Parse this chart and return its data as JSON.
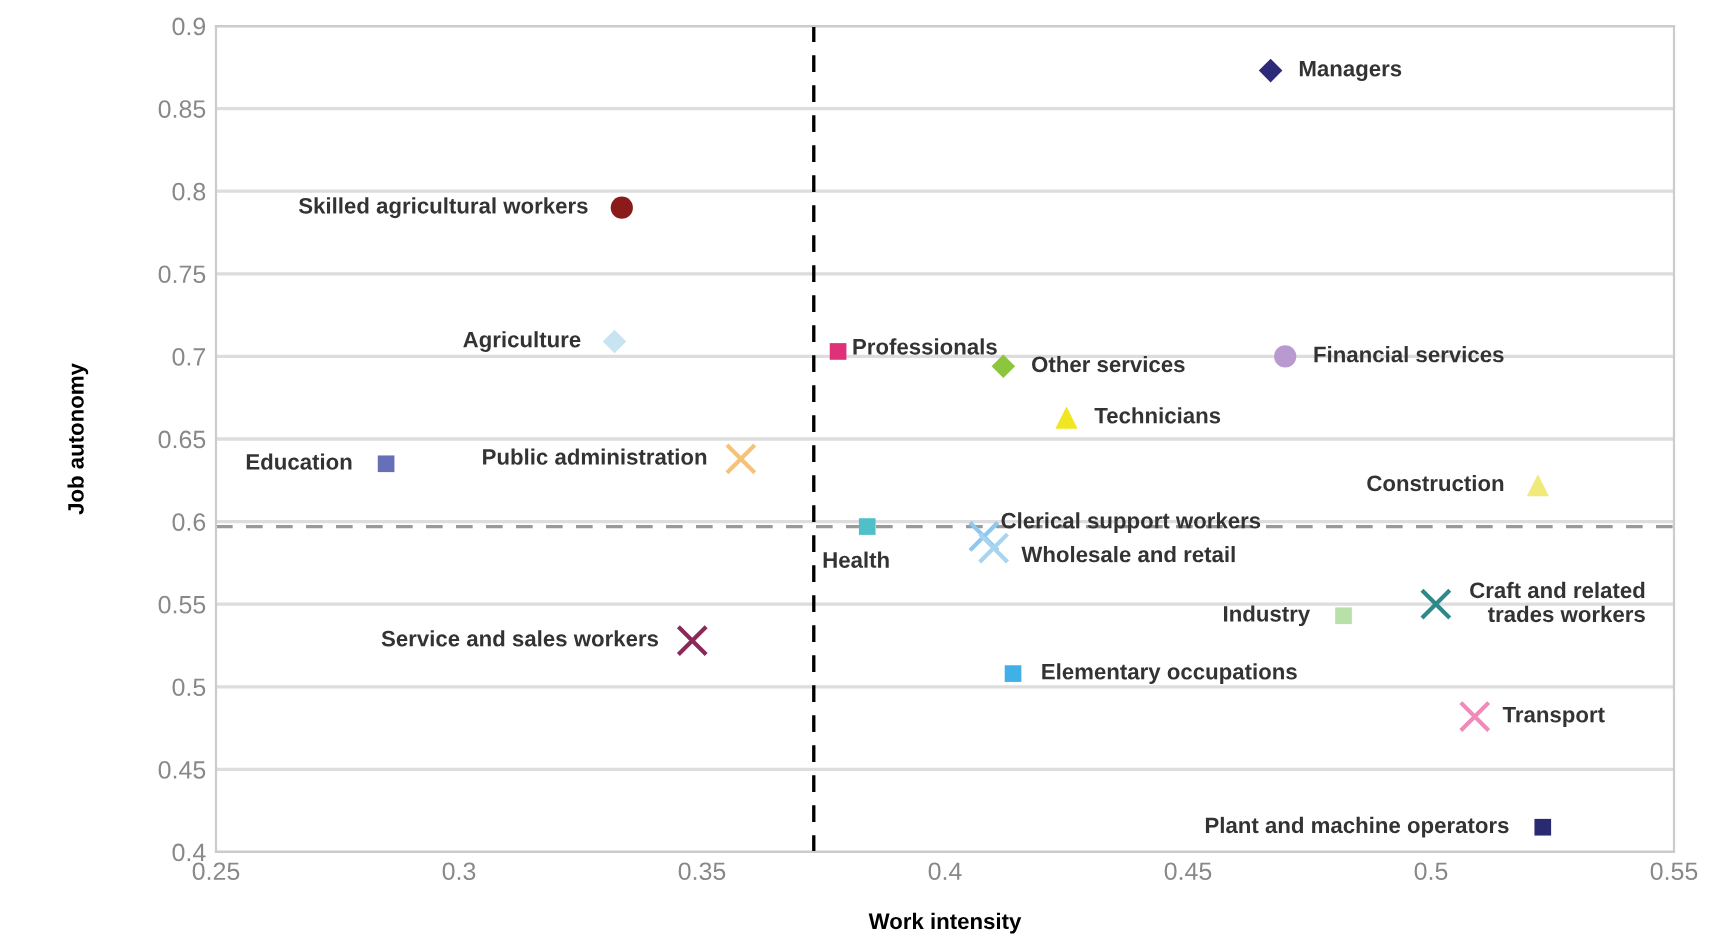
{
  "chart_data": {
    "type": "scatter",
    "xlabel": "Work intensity",
    "ylabel": "Job autonomy",
    "xlim": [
      0.25,
      0.55
    ],
    "xticks": [
      0.25,
      0.3,
      0.35,
      0.4,
      0.45,
      0.5,
      0.55
    ],
    "ylim": [
      0.4,
      0.9
    ],
    "yticks": [
      0.4,
      0.45,
      0.5,
      0.55,
      0.6,
      0.65,
      0.7,
      0.75,
      0.8,
      0.85,
      0.9
    ],
    "grid": "y",
    "ref_lines": [
      {
        "axis": "x",
        "value": 0.373,
        "color": "#000000",
        "line_style": "dashed"
      },
      {
        "axis": "y",
        "value": 0.597,
        "color": "#999999",
        "line_style": "dashed"
      }
    ],
    "series": [
      {
        "name": "Managers",
        "color": "#2e2a7a",
        "marker": "diamond",
        "x": [
          0.467
        ],
        "values": [
          0.873
        ]
      },
      {
        "name": "Skilled agricultural workers",
        "color": "#8b1a1a",
        "marker": "circle",
        "x": [
          0.3335
        ],
        "values": [
          0.79
        ]
      },
      {
        "name": "Agriculture",
        "color": "#c8e4f0",
        "marker": "diamond",
        "x": [
          0.332
        ],
        "values": [
          0.709
        ]
      },
      {
        "name": "Professionals",
        "color": "#e0307a",
        "marker": "square",
        "x": [
          0.378
        ],
        "values": [
          0.703
        ]
      },
      {
        "name": "Other services",
        "color": "#8cc63f",
        "marker": "diamond",
        "x": [
          0.412
        ],
        "values": [
          0.694
        ]
      },
      {
        "name": "Financial services",
        "color": "#b89ad0",
        "marker": "circle",
        "x": [
          0.47
        ],
        "values": [
          0.7
        ]
      },
      {
        "name": "Technicians",
        "color": "#f0e622",
        "marker": "triangle",
        "x": [
          0.425
        ],
        "values": [
          0.663
        ]
      },
      {
        "name": "Education",
        "color": "#6670b8",
        "marker": "square",
        "x": [
          0.285
        ],
        "values": [
          0.635
        ]
      },
      {
        "name": "Public administration",
        "color": "#f5c27a",
        "marker": "cross",
        "x": [
          0.358
        ],
        "values": [
          0.638
        ]
      },
      {
        "name": "Construction",
        "color": "#f0ea7a",
        "marker": "triangle",
        "x": [
          0.522
        ],
        "values": [
          0.622
        ]
      },
      {
        "name": "Health",
        "color": "#50c0c8",
        "marker": "square",
        "x": [
          0.384
        ],
        "values": [
          0.597
        ]
      },
      {
        "name": "Clerical support workers",
        "color": "#8ec8ee",
        "marker": "cross",
        "x": [
          0.408
        ],
        "values": [
          0.591
        ]
      },
      {
        "name": "Wholesale and retail",
        "color": "#a8d4f0",
        "marker": "cross",
        "x": [
          0.41
        ],
        "values": [
          0.584
        ]
      },
      {
        "name": "Industry",
        "color": "#b8e0a8",
        "marker": "square",
        "x": [
          0.482
        ],
        "values": [
          0.543
        ]
      },
      {
        "name": "Craft and related\ntrades workers",
        "color": "#2e8a8a",
        "marker": "cross",
        "x": [
          0.501
        ],
        "values": [
          0.55
        ]
      },
      {
        "name": "Service and sales workers",
        "color": "#8a2a5a",
        "marker": "cross",
        "x": [
          0.348
        ],
        "values": [
          0.528
        ]
      },
      {
        "name": "Elementary occupations",
        "color": "#40b0e8",
        "marker": "square",
        "x": [
          0.414
        ],
        "values": [
          0.508
        ]
      },
      {
        "name": "Transport",
        "color": "#f08ab8",
        "marker": "cross",
        "x": [
          0.509
        ],
        "values": [
          0.482
        ]
      },
      {
        "name": "Plant and machine operators",
        "color": "#2a2a70",
        "marker": "square",
        "x": [
          0.523
        ],
        "values": [
          0.415
        ]
      }
    ]
  }
}
